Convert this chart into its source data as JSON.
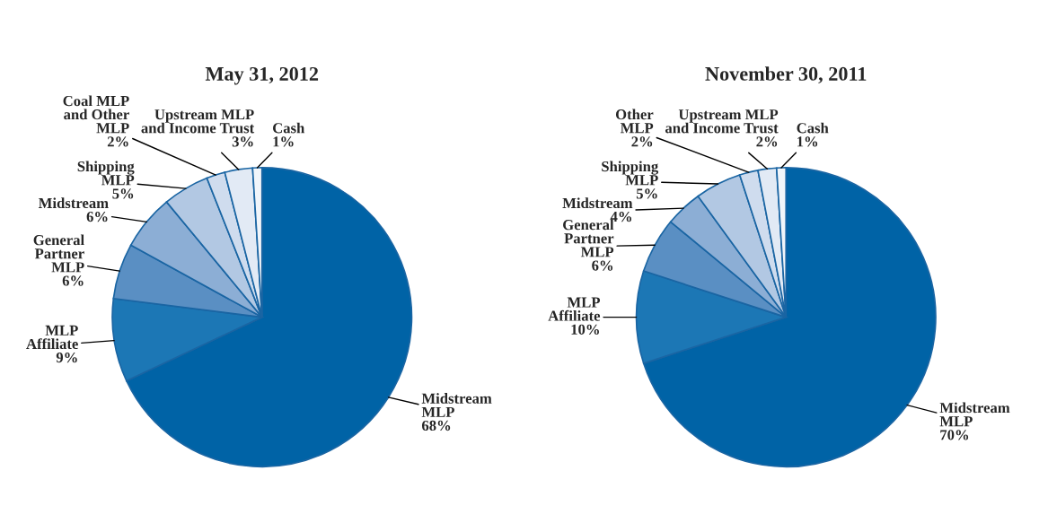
{
  "chart_data": [
    {
      "type": "pie",
      "title": "May 31, 2012",
      "categories": [
        "Midstream\nMLP",
        "MLP\nAffiliate",
        "General\nPartner\nMLP",
        "Midstream",
        "Shipping\nMLP",
        "Coal MLP\nand Other\nMLP",
        "Upstream MLP\nand Income Trust",
        "Cash"
      ],
      "values": [
        68,
        9,
        6,
        6,
        5,
        2,
        3,
        1
      ],
      "value_labels": [
        "68%",
        "9%",
        "6%",
        "6%",
        "5%",
        "2%",
        "3%",
        "1%"
      ],
      "colors": [
        "#0063a6",
        "#1c77b5",
        "#5a8fc3",
        "#8caed5",
        "#b2c8e3",
        "#cfdcee",
        "#e2eaf5",
        "#f1f5fa"
      ]
    },
    {
      "type": "pie",
      "title": "November 30, 2011",
      "categories": [
        "Midstream\nMLP",
        "MLP\nAffiliate",
        "General\nPartner\nMLP",
        "Midstream",
        "Shipping\nMLP",
        "Other\nMLP",
        "Upstream MLP\nand Income Trust",
        "Cash"
      ],
      "values": [
        70,
        10,
        6,
        4,
        5,
        2,
        2,
        1
      ],
      "value_labels": [
        "70%",
        "10%",
        "6%",
        "4%",
        "5%",
        "2%",
        "2%",
        "1%"
      ],
      "colors": [
        "#0063a6",
        "#1c77b5",
        "#5a8fc3",
        "#8caed5",
        "#b2c8e3",
        "#cfdcee",
        "#e2eaf5",
        "#f1f5fa"
      ]
    }
  ]
}
